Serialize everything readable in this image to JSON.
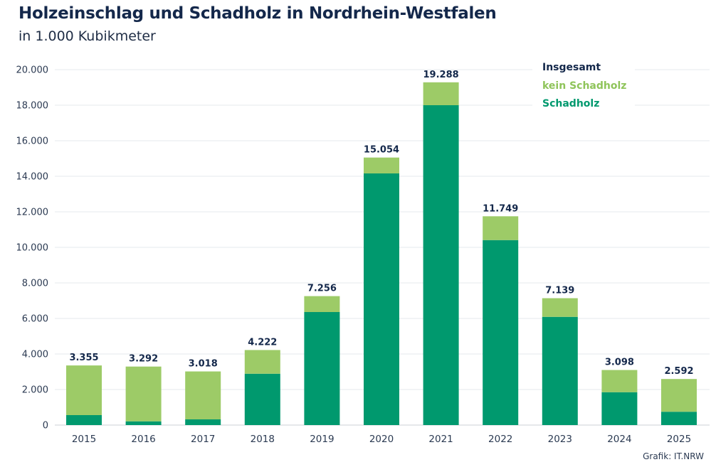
{
  "chart_data": {
    "type": "bar",
    "stacked": true,
    "title": "Holzeinschlag und Schadholz in Nordrhein-Westfalen",
    "subtitle": "in 1.000 Kubikmeter",
    "xlabel": "",
    "ylabel": "",
    "ylim": [
      0,
      20000
    ],
    "yticks": [
      0,
      2000,
      4000,
      6000,
      8000,
      10000,
      12000,
      14000,
      16000,
      18000,
      20000
    ],
    "ytick_labels": [
      "0",
      "2.000",
      "4.000",
      "6.000",
      "8.000",
      "10.000",
      "12.000",
      "14.000",
      "16.000",
      "18.000",
      "20.000"
    ],
    "grid": true,
    "legend_position": "top-right",
    "categories": [
      "2015",
      "2016",
      "2017",
      "2018",
      "2019",
      "2020",
      "2021",
      "2022",
      "2023",
      "2024",
      "2025"
    ],
    "totals": [
      3355,
      3292,
      3018,
      4222,
      7256,
      15054,
      19288,
      11749,
      7139,
      3098,
      2592
    ],
    "total_labels": [
      "3.355",
      "3.292",
      "3.018",
      "4.222",
      "7.256",
      "15.054",
      "19.288",
      "11.749",
      "7.139",
      "3.098",
      "2.592"
    ],
    "series": [
      {
        "name": "Schadholz",
        "color": "#00996e",
        "values": [
          560,
          210,
          320,
          2890,
          6360,
          14160,
          18000,
          10410,
          6090,
          1850,
          750
        ]
      },
      {
        "name": "kein Schadholz",
        "color": "#9dcb67",
        "values": [
          2795,
          3082,
          2698,
          1332,
          896,
          894,
          1288,
          1339,
          1049,
          1248,
          1842
        ]
      }
    ],
    "legend": [
      {
        "label": "Insgesamt",
        "color": "#14284b"
      },
      {
        "label": "kein Schadholz",
        "color": "#8fc45a"
      },
      {
        "label": "Schadholz",
        "color": "#00996e"
      }
    ]
  },
  "source": "Grafik: IT.NRW"
}
